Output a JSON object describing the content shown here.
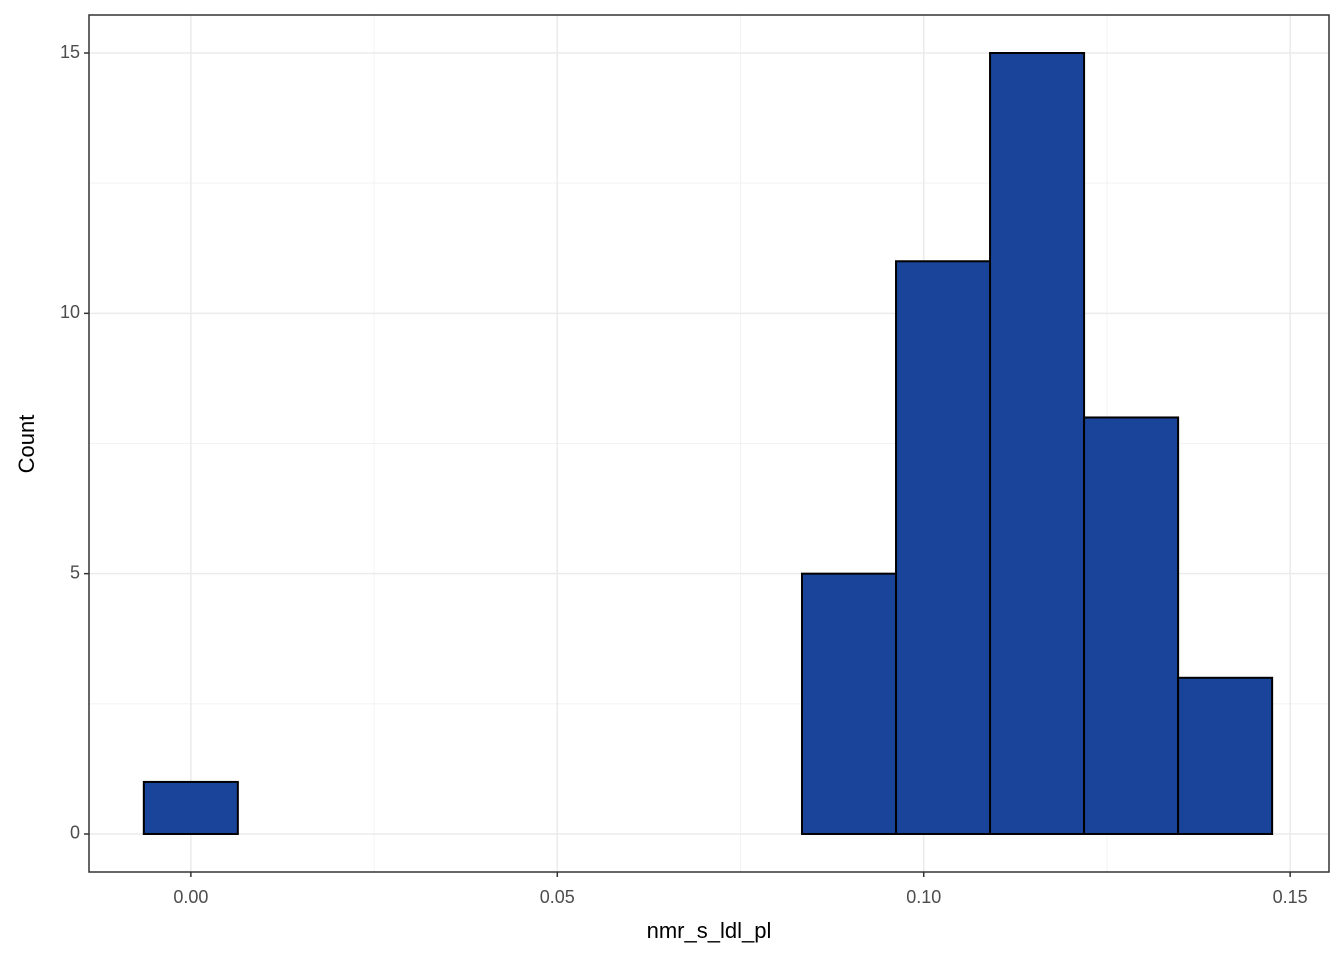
{
  "chart_data": {
    "type": "histogram",
    "x_label": "nmr_s_ldl_pl",
    "y_label": "Count",
    "bins": [
      -0.00642,
      0.00641,
      0.01924,
      0.03207,
      0.0449,
      0.05773,
      0.07056,
      0.08339,
      0.09622,
      0.10905,
      0.12188,
      0.13471,
      0.14754
    ],
    "values": [
      1,
      0,
      0,
      0,
      0,
      0,
      0,
      5,
      11,
      15,
      8,
      3
    ],
    "color": "#1a4499",
    "xlim": [
      -0.0139,
      0.1553
    ],
    "xticks": [
      {
        "value": 0,
        "label": "0.00"
      },
      0.05,
      {
        "value": 0.1,
        "label": "0.10"
      },
      0.15
    ],
    "ylim": [
      -0.73,
      15.73
    ],
    "yticks": [
      0,
      5,
      10,
      15
    ],
    "grid": true
  }
}
